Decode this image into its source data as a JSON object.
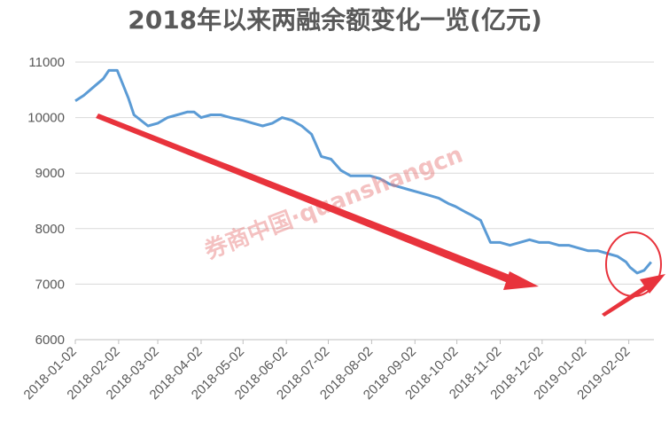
{
  "chart_data": {
    "type": "line",
    "title": "2018年以来两融余额变化一览(亿元)",
    "watermark": "券商中国·quanshangcn",
    "xlabel": "",
    "ylabel": "",
    "ylim": [
      6000,
      11000
    ],
    "yticks": [
      6000,
      7000,
      8000,
      9000,
      10000,
      11000
    ],
    "yticks_labels": [
      "6000",
      "7000",
      "8000",
      "9000",
      "10000",
      "11000"
    ],
    "xticks": [
      "2018-01-02",
      "2018-02-02",
      "2018-03-02",
      "2018-04-02",
      "2018-05-02",
      "2018-06-02",
      "2018-07-02",
      "2018-08-02",
      "2018-09-02",
      "2018-10-02",
      "2018-11-02",
      "2018-12-02",
      "2019-01-02",
      "2019-02-02"
    ],
    "grid": "horizontal",
    "line_color": "#5b9bd5",
    "annotation_color": "#e8333c",
    "series": [
      {
        "x": [
          "2018-01-02",
          "2018-01-08",
          "2018-01-15",
          "2018-01-22",
          "2018-01-26",
          "2018-02-01",
          "2018-02-05",
          "2018-02-09",
          "2018-02-13",
          "2018-02-23",
          "2018-03-02",
          "2018-03-09",
          "2018-03-16",
          "2018-03-23",
          "2018-03-28",
          "2018-04-02",
          "2018-04-09",
          "2018-04-16",
          "2018-04-23",
          "2018-05-02",
          "2018-05-09",
          "2018-05-16",
          "2018-05-23",
          "2018-05-30",
          "2018-06-06",
          "2018-06-13",
          "2018-06-20",
          "2018-06-27",
          "2018-07-04",
          "2018-07-11",
          "2018-07-18",
          "2018-07-25",
          "2018-08-01",
          "2018-08-08",
          "2018-08-15",
          "2018-08-22",
          "2018-08-29",
          "2018-09-05",
          "2018-09-12",
          "2018-09-19",
          "2018-09-26",
          "2018-10-01",
          "2018-10-08",
          "2018-10-12",
          "2018-10-19",
          "2018-10-26",
          "2018-11-02",
          "2018-11-09",
          "2018-11-16",
          "2018-11-23",
          "2018-11-30",
          "2018-12-07",
          "2018-12-14",
          "2018-12-21",
          "2018-12-28",
          "2019-01-04",
          "2019-01-11",
          "2019-01-18",
          "2019-01-25",
          "2019-01-31",
          "2019-02-03",
          "2019-02-08",
          "2019-02-13",
          "2019-02-18"
        ],
        "values": [
          10300,
          10400,
          10550,
          10700,
          10850,
          10850,
          10600,
          10350,
          10050,
          9850,
          9900,
          10000,
          10050,
          10100,
          10100,
          10000,
          10050,
          10050,
          10000,
          9950,
          9900,
          9850,
          9900,
          10000,
          9950,
          9850,
          9700,
          9300,
          9250,
          9050,
          8950,
          8950,
          8950,
          8900,
          8800,
          8750,
          8700,
          8650,
          8600,
          8550,
          8450,
          8400,
          8300,
          8250,
          8150,
          7750,
          7750,
          7700,
          7750,
          7800,
          7750,
          7750,
          7700,
          7700,
          7650,
          7600,
          7600,
          7550,
          7500,
          7400,
          7300,
          7200,
          7250,
          7400
        ]
      }
    ]
  }
}
